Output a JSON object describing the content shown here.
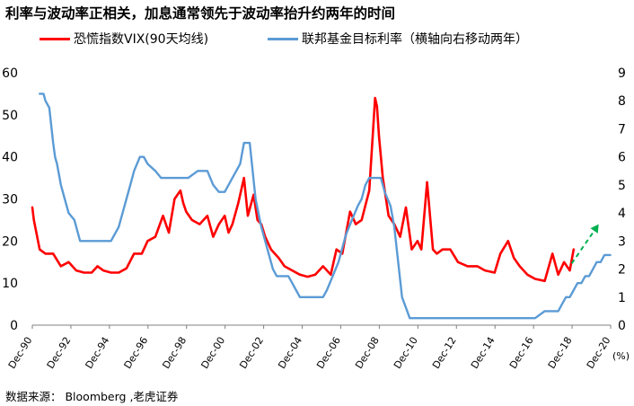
{
  "title": "利率与波动率正相关，加息通常领先于波动率抬升约两年的时间",
  "source": "数据来源：  Bloomberg ,老虎证券",
  "legend": [
    {
      "label": "恐慌指数VIX(90天均线)",
      "color": "#ff0000"
    },
    {
      "label": "联邦基金目标利率（横轴向右移动两年）",
      "color": "#5b9bd5"
    }
  ],
  "chart_data": {
    "type": "line",
    "title": "利率与波动率正相关，加息通常领先于波动率抬升约两年的时间",
    "x_labels": [
      "Dec-90",
      "Dec-92",
      "Dec-94",
      "Dec-96",
      "Dec-98",
      "Dec-00",
      "Dec-02",
      "Dec-04",
      "Dec-06",
      "Dec-08",
      "Dec-10",
      "Dec-12",
      "Dec-14",
      "Dec-16",
      "Dec-18",
      "Dec-20"
    ],
    "x_range": [
      1990.92,
      2020.92
    ],
    "y_left": {
      "ticks": [
        "0",
        "10",
        "20",
        "30",
        "40",
        "50",
        "60"
      ],
      "range": [
        0,
        60
      ]
    },
    "y_right": {
      "ticks": [
        "0",
        "1",
        "2",
        "3",
        "4",
        "5",
        "6",
        "7",
        "8",
        "9"
      ],
      "range": [
        0,
        9
      ],
      "unit": "(%)"
    },
    "grid": false,
    "legend_position": "top",
    "series": [
      {
        "name": "恐慌指数VIX(90天均线)",
        "axis": "left",
        "color": "#ff0000",
        "x": [
          1990.92,
          1991.0,
          1991.3,
          1991.6,
          1992.0,
          1992.4,
          1992.8,
          1993.2,
          1993.6,
          1994.0,
          1994.3,
          1994.6,
          1995.0,
          1995.4,
          1995.8,
          1996.2,
          1996.6,
          1996.9,
          1997.3,
          1997.7,
          1998.0,
          1998.3,
          1998.6,
          1998.75,
          1998.9,
          1999.2,
          1999.6,
          2000.0,
          2000.3,
          2000.6,
          2000.9,
          2001.1,
          2001.3,
          2001.6,
          2001.9,
          2002.1,
          2002.4,
          2002.6,
          2002.8,
          2003.0,
          2003.3,
          2003.7,
          2004.0,
          2004.4,
          2004.8,
          2005.2,
          2005.6,
          2006.0,
          2006.4,
          2006.7,
          2007.0,
          2007.4,
          2007.7,
          2008.0,
          2008.4,
          2008.7,
          2008.8,
          2008.9,
          2009.1,
          2009.4,
          2009.7,
          2010.0,
          2010.3,
          2010.6,
          2010.9,
          2011.1,
          2011.4,
          2011.7,
          2011.9,
          2012.2,
          2012.6,
          2013.0,
          2013.5,
          2014.0,
          2014.4,
          2014.9,
          2015.2,
          2015.6,
          2015.9,
          2016.2,
          2016.6,
          2017.0,
          2017.5,
          2017.9,
          2018.2,
          2018.5,
          2018.8,
          2019.0
        ],
        "y": [
          28,
          25,
          18,
          17,
          17,
          14,
          15,
          13,
          12.5,
          12.5,
          14,
          13,
          12.5,
          12.5,
          13.5,
          17,
          17,
          20,
          21,
          26,
          22,
          30,
          32,
          29,
          27,
          25,
          24,
          26,
          21,
          24,
          26,
          22,
          24,
          29,
          35,
          26,
          31,
          25,
          24,
          21,
          18,
          16,
          14,
          13,
          12,
          11.5,
          12,
          14,
          12,
          18,
          17,
          27,
          24,
          25,
          32,
          54,
          52,
          45,
          35,
          26,
          24,
          21,
          28,
          18,
          20,
          18,
          34,
          18,
          17,
          18,
          18,
          15,
          14,
          14,
          13,
          12.5,
          17,
          20,
          16,
          14,
          12,
          11,
          10.5,
          17,
          12,
          15,
          13,
          18
        ]
      },
      {
        "name": "联邦基金目标利率（横轴向右移动两年）",
        "axis": "right",
        "color": "#5b9bd5",
        "x": [
          1991.3,
          1991.5,
          1991.6,
          1991.8,
          1992.0,
          1992.1,
          1992.2,
          1992.4,
          1992.6,
          1992.8,
          1993.1,
          1993.4,
          1993.7,
          1994.0,
          1994.5,
          1995.0,
          1995.2,
          1995.4,
          1995.6,
          1995.8,
          1996.0,
          1996.2,
          1996.5,
          1996.7,
          1996.9,
          1997.3,
          1997.6,
          1998.0,
          1998.5,
          1999.0,
          1999.5,
          2000.0,
          2000.3,
          2000.6,
          2000.9,
          2001.1,
          2001.3,
          2001.5,
          2001.7,
          2001.9,
          2002.2,
          2002.5,
          2002.8,
          2003.0,
          2003.2,
          2003.4,
          2003.6,
          2003.8,
          2004.0,
          2004.2,
          2004.4,
          2004.6,
          2004.8,
          2005.0,
          2005.4,
          2005.8,
          2006.0,
          2006.2,
          2006.5,
          2006.8,
          2007.0,
          2007.2,
          2007.5,
          2007.8,
          2008.0,
          2008.2,
          2008.4,
          2008.6,
          2008.8,
          2009.0,
          2009.2,
          2009.5,
          2009.7,
          2009.9,
          2010.1,
          2010.5,
          2011.0,
          2012.0,
          2013.0,
          2014.0,
          2015.0,
          2016.0,
          2016.5,
          2017.0,
          2017.5,
          2018.0,
          2018.2,
          2018.4,
          2018.6,
          2018.8,
          2019.0,
          2019.2,
          2019.4,
          2019.6,
          2019.8,
          2020.0,
          2020.2,
          2020.4,
          2020.6,
          2020.9
        ],
        "y": [
          8.25,
          8.25,
          8.0,
          7.75,
          6.5,
          6.0,
          5.75,
          5.0,
          4.5,
          4.0,
          3.75,
          3.0,
          3.0,
          3.0,
          3.0,
          3.0,
          3.25,
          3.5,
          4.0,
          4.5,
          5.0,
          5.5,
          6.0,
          6.0,
          5.75,
          5.5,
          5.25,
          5.25,
          5.25,
          5.25,
          5.5,
          5.5,
          5.0,
          4.75,
          4.75,
          5.0,
          5.25,
          5.5,
          5.75,
          6.5,
          6.5,
          4.5,
          3.5,
          3.0,
          2.5,
          2.0,
          1.75,
          1.75,
          1.75,
          1.75,
          1.5,
          1.25,
          1.0,
          1.0,
          1.0,
          1.0,
          1.0,
          1.25,
          1.75,
          2.25,
          2.75,
          3.25,
          3.75,
          4.25,
          4.5,
          5.0,
          5.25,
          5.25,
          5.25,
          5.25,
          4.75,
          4.25,
          3.5,
          2.25,
          1.0,
          0.25,
          0.25,
          0.25,
          0.25,
          0.25,
          0.25,
          0.25,
          0.25,
          0.25,
          0.5,
          0.5,
          0.5,
          0.75,
          1.0,
          1.0,
          1.25,
          1.5,
          1.5,
          1.75,
          1.75,
          2.0,
          2.25,
          2.25,
          2.5,
          2.5
        ]
      }
    ],
    "annotations": [
      {
        "type": "dashed-arrow",
        "color": "#00b050",
        "from": [
          2018.9,
          2.2
        ],
        "to": [
          2020.3,
          3.6
        ]
      }
    ]
  }
}
